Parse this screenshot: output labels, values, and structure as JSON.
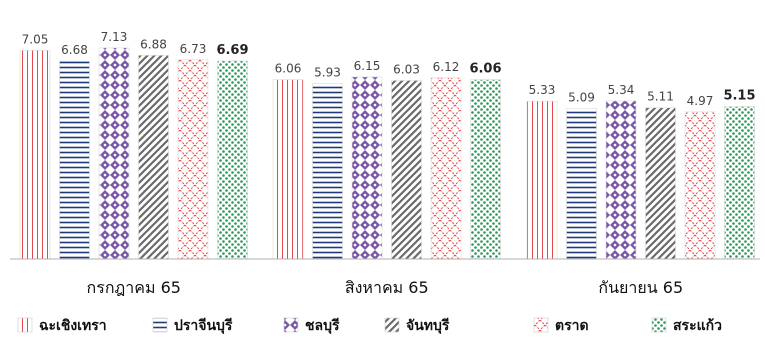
{
  "chart_data": {
    "type": "bar",
    "categories": [
      "กรกฎาคม 65",
      "สิงหาคม 65",
      "กันยายน 65"
    ],
    "series": [
      {
        "name": "ฉะเชิงเทรา",
        "values": [
          7.05,
          6.06,
          5.33
        ],
        "color": "#e8474b",
        "pattern": "vertical-lines"
      },
      {
        "name": "ปราจีนบุรี",
        "values": [
          6.68,
          5.93,
          5.09
        ],
        "color": "#1f3a7a",
        "pattern": "horizontal-lines"
      },
      {
        "name": "ชลบุรี",
        "values": [
          7.13,
          6.15,
          5.34
        ],
        "color": "#7a5aa8",
        "pattern": "diamond-checker"
      },
      {
        "name": "จันทบุรี",
        "values": [
          6.88,
          6.03,
          5.11
        ],
        "color": "#6b6b6b",
        "pattern": "diagonal-stripes"
      },
      {
        "name": "ตราด",
        "values": [
          6.73,
          6.12,
          4.97
        ],
        "color": "#e8474b",
        "pattern": "zigzag"
      },
      {
        "name": "สระแก้ว",
        "values": [
          6.69,
          6.06,
          5.15
        ],
        "color": "#2a9a5a",
        "pattern": "dots"
      }
    ],
    "ylim": [
      0,
      7.6
    ],
    "grid": false,
    "legend": "bottom"
  }
}
